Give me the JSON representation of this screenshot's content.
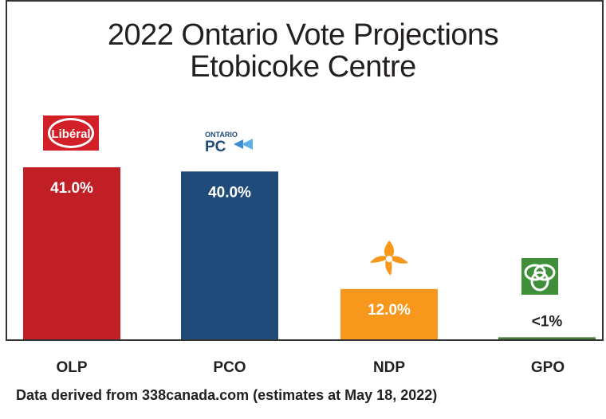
{
  "chart_data": {
    "type": "bar",
    "title": "2022 Ontario Vote Projections",
    "subtitle": "Etobicoke Centre",
    "categories": [
      "OLP",
      "PCO",
      "NDP",
      "GPO"
    ],
    "values": [
      41.0,
      40.0,
      12.0,
      0.5
    ],
    "labels": [
      "41.0%",
      "40.0%",
      "12.0%",
      "<1%"
    ],
    "colors": [
      "#c11f26",
      "#1f4b7a",
      "#f7981d",
      "#4a7a3c"
    ],
    "ylim": [
      0,
      45
    ],
    "grid": false,
    "legend": "none",
    "logos": [
      "Libéral",
      "ONTARIO PC",
      "NDP",
      "GPO"
    ],
    "footnote": "Data derived from 338canada.com (estimates at May 18, 2022)"
  }
}
